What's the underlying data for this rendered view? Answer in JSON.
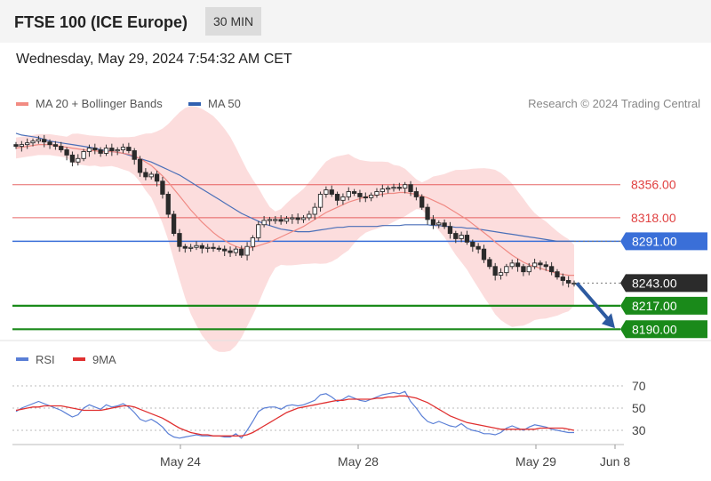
{
  "header": {
    "title": "FTSE 100 (ICE Europe)",
    "timeframe": "30 MIN"
  },
  "datetime": "Wednesday, May 29, 2024 7:54:32 AM CET",
  "legend": {
    "ma20": {
      "label": "MA 20 + Bollinger Bands",
      "color": "#f28b82"
    },
    "ma50": {
      "label": "MA 50",
      "color": "#3060b0"
    }
  },
  "copyright": "Research © 2024 Trading Central",
  "chart_data": [
    {
      "type": "candlestick",
      "price_range": [
        8175,
        8420
      ],
      "x_ticks": [
        "May 24",
        "May 28",
        "May 29",
        "Jun 8"
      ],
      "levels": [
        {
          "label": "8356.00",
          "value": 8356,
          "kind": "resistance",
          "color": "#e04040"
        },
        {
          "label": "8318.00",
          "value": 8318,
          "kind": "resistance",
          "color": "#e04040"
        },
        {
          "label": "8291.00",
          "value": 8291,
          "kind": "ma50",
          "color": "#3a6fd8"
        },
        {
          "label": "8243.00",
          "value": 8243,
          "kind": "last",
          "color": "#2b2b2b"
        },
        {
          "label": "8217.00",
          "value": 8217,
          "kind": "support",
          "color": "#1a8a1a"
        },
        {
          "label": "8190.00",
          "value": 8190,
          "kind": "support",
          "color": "#1a8a1a"
        }
      ],
      "close": [
        8400,
        8402,
        8404,
        8406,
        8408,
        8405,
        8402,
        8400,
        8396,
        8390,
        8382,
        8386,
        8394,
        8398,
        8396,
        8392,
        8398,
        8395,
        8396,
        8399,
        8395,
        8385,
        8370,
        8365,
        8368,
        8360,
        8345,
        8322,
        8300,
        8285,
        8283,
        8284,
        8286,
        8283,
        8284,
        8283,
        8282,
        8280,
        8278,
        8282,
        8275,
        8285,
        8295,
        8310,
        8315,
        8316,
        8316,
        8314,
        8317,
        8318,
        8316,
        8318,
        8322,
        8330,
        8345,
        8350,
        8345,
        8338,
        8342,
        8348,
        8346,
        8342,
        8341,
        8344,
        8348,
        8351,
        8352,
        8353,
        8352,
        8356,
        8348,
        8342,
        8330,
        8316,
        8310,
        8312,
        8308,
        8300,
        8294,
        8298,
        8290,
        8285,
        8282,
        8270,
        8262,
        8252,
        8255,
        8262,
        8266,
        8262,
        8256,
        8262,
        8266,
        8264,
        8262,
        8256,
        8250,
        8246,
        8243,
        8243
      ],
      "ma20": [
        8398,
        8399,
        8400,
        8401,
        8402,
        8402,
        8402,
        8401,
        8400,
        8399,
        8398,
        8397,
        8396,
        8395,
        8395,
        8394,
        8394,
        8394,
        8393,
        8392,
        8391,
        8389,
        8386,
        8382,
        8378,
        8372,
        8366,
        8359,
        8351,
        8343,
        8335,
        8327,
        8320,
        8313,
        8307,
        8301,
        8296,
        8292,
        8288,
        8285,
        8283,
        8283,
        8284,
        8286,
        8288,
        8290,
        8293,
        8296,
        8299,
        8302,
        8305,
        8308,
        8312,
        8316,
        8320,
        8324,
        8327,
        8330,
        8333,
        8336,
        8338,
        8340,
        8342,
        8343,
        8344,
        8345,
        8346,
        8346,
        8347,
        8347,
        8346,
        8345,
        8343,
        8341,
        8338,
        8335,
        8332,
        8328,
        8324,
        8320,
        8316,
        8311,
        8306,
        8301,
        8296,
        8290,
        8285,
        8280,
        8275,
        8271,
        8267,
        8264,
        8262,
        8260,
        8258,
        8256,
        8254,
        8253,
        8252,
        8252
      ],
      "ma50": [
        8415,
        8413,
        8412,
        8411,
        8410,
        8408,
        8406,
        8405,
        8404,
        8403,
        8402,
        8401,
        8400,
        8399,
        8398,
        8396,
        8395,
        8394,
        8393,
        8392,
        8390,
        8388,
        8386,
        8384,
        8382,
        8379,
        8376,
        8373,
        8370,
        8367,
        8363,
        8359,
        8355,
        8351,
        8347,
        8343,
        8339,
        8335,
        8331,
        8327,
        8323,
        8320,
        8317,
        8314,
        8311,
        8309,
        8307,
        8305,
        8304,
        8303,
        8302,
        8302,
        8302,
        8303,
        8304,
        8305,
        8306,
        8307,
        8307,
        8308,
        8308,
        8308,
        8308,
        8308,
        8308,
        8309,
        8309,
        8309,
        8309,
        8310,
        8310,
        8310,
        8310,
        8310,
        8309,
        8309,
        8308,
        8308,
        8307,
        8307,
        8306,
        8306,
        8305,
        8304,
        8303,
        8302,
        8301,
        8300,
        8299,
        8298,
        8297,
        8296,
        8295,
        8294,
        8293,
        8292,
        8291,
        8291,
        8291,
        8291
      ]
    },
    {
      "type": "line",
      "legend": [
        {
          "name": "RSI",
          "color": "#5a7fd6"
        },
        {
          "name": "9MA",
          "color": "#e03030"
        }
      ],
      "y_ticks": [
        "70",
        "50",
        "30"
      ],
      "y_range": [
        20,
        80
      ],
      "rsi": [
        47,
        50,
        52,
        54,
        56,
        54,
        52,
        50,
        48,
        45,
        42,
        44,
        50,
        53,
        51,
        49,
        53,
        51,
        52,
        54,
        51,
        46,
        40,
        38,
        40,
        37,
        33,
        27,
        24,
        23,
        24,
        25,
        26,
        25,
        25,
        25,
        25,
        24,
        24,
        27,
        23,
        30,
        38,
        47,
        50,
        51,
        51,
        49,
        52,
        53,
        52,
        53,
        55,
        57,
        62,
        63,
        60,
        56,
        58,
        61,
        59,
        57,
        56,
        58,
        60,
        62,
        63,
        64,
        63,
        65,
        56,
        50,
        43,
        38,
        36,
        38,
        36,
        34,
        33,
        36,
        32,
        30,
        29,
        27,
        27,
        26,
        28,
        32,
        34,
        32,
        30,
        33,
        35,
        34,
        33,
        31,
        30,
        29,
        28,
        28
      ],
      "ma9": [
        48,
        49,
        50,
        51,
        51,
        52,
        52,
        52,
        52,
        51,
        50,
        49,
        48,
        48,
        48,
        48,
        49,
        50,
        51,
        52,
        52,
        51,
        49,
        47,
        45,
        43,
        41,
        38,
        35,
        32,
        30,
        28,
        27,
        26,
        26,
        25,
        25,
        25,
        25,
        25,
        25,
        26,
        28,
        31,
        34,
        37,
        40,
        43,
        46,
        48,
        50,
        51,
        52,
        53,
        54,
        55,
        56,
        57,
        57,
        58,
        58,
        58,
        58,
        58,
        59,
        59,
        60,
        60,
        61,
        61,
        60,
        59,
        57,
        55,
        52,
        49,
        46,
        43,
        41,
        39,
        37,
        36,
        35,
        34,
        33,
        32,
        31,
        31,
        31,
        31,
        31,
        31,
        31,
        32,
        32,
        32,
        32,
        32,
        31,
        30
      ]
    }
  ]
}
